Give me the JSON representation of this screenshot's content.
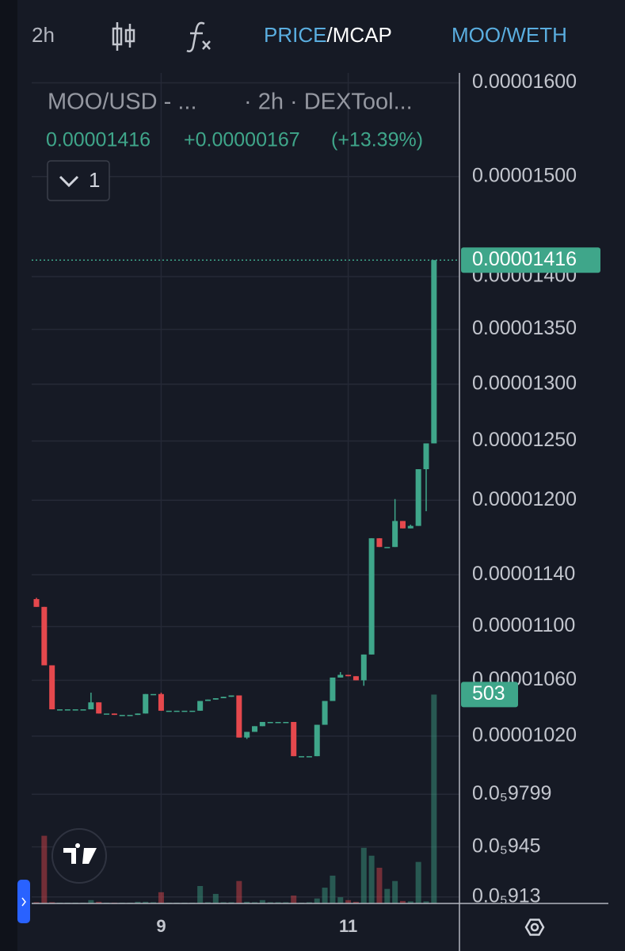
{
  "toolbar": {
    "interval": "2h",
    "price": "PRICE",
    "mcap": "/MCAP",
    "pair": "MOO/WETH"
  },
  "chart_data": {
    "type": "candlestick",
    "symbol": "MOO/USD - ...",
    "source": "· 2h · DEXTool...",
    "change": "+0.00000167",
    "change_pct": "(+13.39%)",
    "collapse_count": 1,
    "categories": [
      null,
      null,
      null,
      null,
      null,
      null,
      null,
      null,
      null,
      null,
      null,
      null,
      null,
      null,
      null,
      null,
      "9",
      null,
      null,
      null,
      null,
      null,
      null,
      null,
      null,
      null,
      null,
      null,
      null,
      null,
      null,
      null,
      null,
      null,
      null,
      null,
      null,
      null,
      null,
      null,
      "11",
      null,
      null,
      null,
      null,
      null,
      null,
      null,
      null,
      null,
      null,
      null
    ],
    "open": [
      1.121e-05,
      1.115e-05,
      1.071e-05,
      1.039e-05,
      1.039e-05,
      1.039e-05,
      1.039e-05,
      1.039e-05,
      1.044e-05,
      1.036e-05,
      1.036e-05,
      1.035e-05,
      1.035e-05,
      1.035e-05,
      1.036e-05,
      1.05e-05,
      1.05e-05,
      1.038e-05,
      1.038e-05,
      1.038e-05,
      1.038e-05,
      1.038e-05,
      1.045e-05,
      1.046e-05,
      1.047e-05,
      1.048e-05,
      1.049e-05,
      1.019e-05,
      1.023e-05,
      1.027e-05,
      1.03e-05,
      1.03e-05,
      1.03e-05,
      1.03e-05,
      1.006e-05,
      1.006e-05,
      1.006e-05,
      1.028e-05,
      1.045e-05,
      1.062e-05,
      1.064e-05,
      1.063e-05,
      1.06e-05,
      1.079e-05,
      1.169e-05,
      1.162e-05,
      1.162e-05,
      1.183e-05,
      1.177e-05,
      1.179e-05,
      1.226e-05,
      1.248e-05
    ],
    "high": [
      1.122e-05,
      1.115e-05,
      1.071e-05,
      1.039e-05,
      1.039e-05,
      1.039e-05,
      1.039e-05,
      1.051e-05,
      1.044e-05,
      1.036e-05,
      1.036e-05,
      1.035e-05,
      1.035e-05,
      1.036e-05,
      1.05e-05,
      1.05e-05,
      1.051e-05,
      1.038e-05,
      1.038e-05,
      1.038e-05,
      1.038e-05,
      1.045e-05,
      1.046e-05,
      1.047e-05,
      1.048e-05,
      1.049e-05,
      1.049e-05,
      1.023e-05,
      1.027e-05,
      1.03e-05,
      1.03e-05,
      1.03e-05,
      1.03e-05,
      1.03e-05,
      1.006e-05,
      1.006e-05,
      1.028e-05,
      1.045e-05,
      1.062e-05,
      1.066e-05,
      1.064e-05,
      1.063e-05,
      1.079e-05,
      1.169e-05,
      1.169e-05,
      1.162e-05,
      1.201e-05,
      1.183e-05,
      1.18e-05,
      1.226e-05,
      1.248e-05,
      1.416e-05
    ],
    "low": [
      1.115e-05,
      1.071e-05,
      1.039e-05,
      1.039e-05,
      1.039e-05,
      1.039e-05,
      1.039e-05,
      1.039e-05,
      1.036e-05,
      1.036e-05,
      1.035e-05,
      1.035e-05,
      1.035e-05,
      1.035e-05,
      1.036e-05,
      1.05e-05,
      1.038e-05,
      1.038e-05,
      1.038e-05,
      1.038e-05,
      1.038e-05,
      1.038e-05,
      1.045e-05,
      1.046e-05,
      1.047e-05,
      1.048e-05,
      1.019e-05,
      1.018e-05,
      1.023e-05,
      1.027e-05,
      1.03e-05,
      1.03e-05,
      1.03e-05,
      1.006e-05,
      1.006e-05,
      1.006e-05,
      1.006e-05,
      1.028e-05,
      1.045e-05,
      1.062e-05,
      1.063e-05,
      1.06e-05,
      1.056e-05,
      1.079e-05,
      1.162e-05,
      1.162e-05,
      1.162e-05,
      1.177e-05,
      1.177e-05,
      1.179e-05,
      1.191e-05,
      1.248e-05
    ],
    "close": [
      1.115e-05,
      1.071e-05,
      1.039e-05,
      1.039e-05,
      1.039e-05,
      1.039e-05,
      1.039e-05,
      1.044e-05,
      1.036e-05,
      1.036e-05,
      1.035e-05,
      1.035e-05,
      1.035e-05,
      1.036e-05,
      1.05e-05,
      1.05e-05,
      1.038e-05,
      1.038e-05,
      1.038e-05,
      1.038e-05,
      1.038e-05,
      1.045e-05,
      1.046e-05,
      1.047e-05,
      1.048e-05,
      1.049e-05,
      1.019e-05,
      1.023e-05,
      1.027e-05,
      1.03e-05,
      1.03e-05,
      1.03e-05,
      1.03e-05,
      1.006e-05,
      1.006e-05,
      1.006e-05,
      1.028e-05,
      1.045e-05,
      1.062e-05,
      1.064e-05,
      1.063e-05,
      1.06e-05,
      1.079e-05,
      1.169e-05,
      1.162e-05,
      1.162e-05,
      1.183e-05,
      1.177e-05,
      1.179e-05,
      1.226e-05,
      1.248e-05,
      1.416e-05
    ],
    "volume": [
      3,
      163,
      3,
      2,
      2,
      2,
      2,
      8,
      4,
      2,
      2,
      2,
      2,
      4,
      4,
      3,
      27,
      2,
      2,
      2,
      2,
      42,
      3,
      23,
      3,
      3,
      54,
      4,
      3,
      8,
      3,
      3,
      3,
      19,
      2,
      3,
      12,
      38,
      67,
      15,
      8,
      4,
      134,
      115,
      86,
      35,
      54,
      6,
      5,
      100,
      5,
      503
    ],
    "up_color": "#3fa68a",
    "down_color": "#e5484d",
    "log_scale": true,
    "ylim": [
      9.089e-06,
      1.611e-05
    ],
    "yticks": [
      {
        "value": 1.6e-05,
        "label": "0.00001600"
      },
      {
        "value": 1.5e-05,
        "label": "0.00001500"
      },
      {
        "value": 1.4e-05,
        "label": "0.00001400"
      },
      {
        "value": 1.35e-05,
        "label": "0.00001350"
      },
      {
        "value": 1.3e-05,
        "label": "0.00001300"
      },
      {
        "value": 1.25e-05,
        "label": "0.00001250"
      },
      {
        "value": 1.2e-05,
        "label": "0.00001200"
      },
      {
        "value": 1.14e-05,
        "label": "0.00001140"
      },
      {
        "value": 1.1e-05,
        "label": "0.00001100"
      },
      {
        "value": 1.06e-05,
        "label": "0.00001060"
      },
      {
        "value": 1.02e-05,
        "label": "0.00001020"
      },
      {
        "value": 9.799e-06,
        "label": "0.0₅9799"
      },
      {
        "value": 9.45e-06,
        "label": "0.0₅945"
      },
      {
        "value": 9.13e-06,
        "label": "0.0₅913"
      }
    ],
    "y2lim": [
      0,
      2000
    ],
    "grid": true
  }
}
